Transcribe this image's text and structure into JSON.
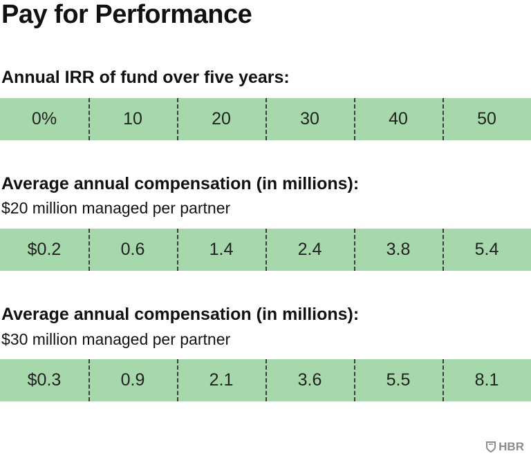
{
  "title": "Pay for Performance",
  "sections": [
    {
      "heading": "Annual IRR of fund over five years:",
      "subheading": "",
      "values": [
        "0%",
        "10",
        "20",
        "30",
        "40",
        "50"
      ]
    },
    {
      "heading": "Average annual compensation (in millions):",
      "subheading": "$20 million managed per partner",
      "values": [
        "$0.2",
        "0.6",
        "1.4",
        "2.4",
        "3.8",
        "5.4"
      ]
    },
    {
      "heading": "Average annual compensation (in millions):",
      "subheading": "$30 million managed per partner",
      "values": [
        "$0.3",
        "0.9",
        "2.1",
        "3.6",
        "5.5",
        "8.1"
      ]
    }
  ],
  "brand": "HBR",
  "colors": {
    "band": "#a6d8ab",
    "text": "#111111",
    "logo": "#8c8c8c"
  },
  "chart_data": {
    "type": "table",
    "title": "Pay for Performance",
    "columns": [
      "0%",
      "10",
      "20",
      "30",
      "40",
      "50"
    ],
    "rows": [
      {
        "name": "Annual IRR of fund over five years:",
        "values": [
          0,
          10,
          20,
          30,
          40,
          50
        ]
      },
      {
        "name": "Average annual compensation (in millions): $20 million managed per partner",
        "values": [
          0.2,
          0.6,
          1.4,
          2.4,
          3.8,
          5.4
        ]
      },
      {
        "name": "Average annual compensation (in millions): $30 million managed per partner",
        "values": [
          0.3,
          0.9,
          2.1,
          3.6,
          5.5,
          8.1
        ]
      }
    ]
  }
}
